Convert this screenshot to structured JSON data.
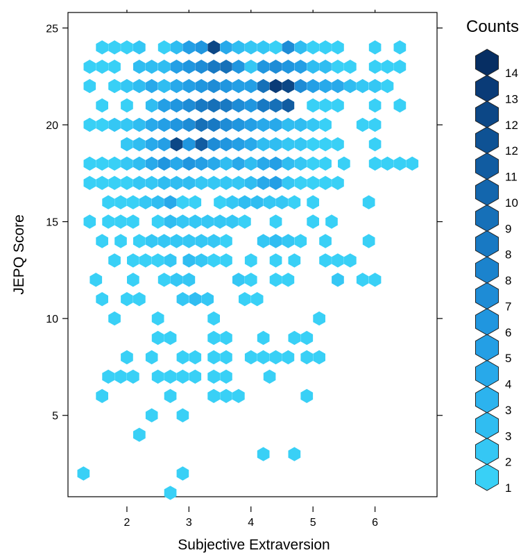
{
  "chart_data": {
    "type": "hexbin",
    "xlabel": "Subjective Extraversion",
    "ylabel": "JEPQ Score",
    "xlim": [
      1.05,
      7.0
    ],
    "ylim": [
      0.8,
      25.8
    ],
    "x_ticks": [
      2,
      3,
      4,
      5,
      6
    ],
    "y_ticks": [
      5,
      10,
      15,
      20,
      25
    ],
    "legend": {
      "title": "Counts",
      "labels": [
        "1",
        "2",
        "3",
        "3",
        "4",
        "5",
        "6",
        "7",
        "8",
        "8",
        "9",
        "10",
        "11",
        "12",
        "12",
        "13",
        "14"
      ],
      "colors": [
        "#39D0F6",
        "#35C7F4",
        "#30BDF1",
        "#2CB3EE",
        "#28A9EA",
        "#249FE5",
        "#2096DF",
        "#1E8CD6",
        "#1B83CD",
        "#1879C3",
        "#1670B8",
        "#1366AD",
        "#115CA1",
        "#0E5294",
        "#0C4786",
        "#0A3B77",
        "#062E63"
      ]
    },
    "rows": [
      {
        "y": 24,
        "cells": [
          [
            1.6,
            1
          ],
          [
            1.8,
            1
          ],
          [
            2.0,
            1
          ],
          [
            2.2,
            2
          ],
          [
            2.6,
            1
          ],
          [
            2.8,
            3
          ],
          [
            3.0,
            5
          ],
          [
            3.2,
            6
          ],
          [
            3.4,
            12
          ],
          [
            3.6,
            4
          ],
          [
            3.8,
            3
          ],
          [
            4.0,
            2
          ],
          [
            4.2,
            2
          ],
          [
            4.4,
            1
          ],
          [
            4.6,
            7
          ],
          [
            4.8,
            3
          ],
          [
            5.0,
            1
          ],
          [
            5.2,
            1
          ],
          [
            5.4,
            1
          ],
          [
            6.0,
            1
          ],
          [
            6.4,
            1
          ]
        ]
      },
      {
        "y": 23,
        "cells": [
          [
            1.4,
            1
          ],
          [
            1.6,
            1
          ],
          [
            1.8,
            1
          ],
          [
            2.2,
            3
          ],
          [
            2.4,
            3
          ],
          [
            2.6,
            3
          ],
          [
            2.8,
            5
          ],
          [
            3.0,
            6
          ],
          [
            3.2,
            7
          ],
          [
            3.4,
            8
          ],
          [
            3.6,
            9
          ],
          [
            3.8,
            6
          ],
          [
            4.0,
            2
          ],
          [
            4.2,
            6
          ],
          [
            4.4,
            7
          ],
          [
            4.6,
            6
          ],
          [
            4.8,
            5
          ],
          [
            5.0,
            3
          ],
          [
            5.2,
            3
          ],
          [
            5.4,
            1
          ],
          [
            5.6,
            1
          ],
          [
            6.0,
            1
          ],
          [
            6.2,
            1
          ],
          [
            6.4,
            1
          ]
        ]
      },
      {
        "y": 22,
        "cells": [
          [
            1.4,
            1
          ],
          [
            1.8,
            1
          ],
          [
            2.0,
            2
          ],
          [
            2.2,
            3
          ],
          [
            2.4,
            4
          ],
          [
            2.6,
            3
          ],
          [
            2.8,
            4
          ],
          [
            3.0,
            5
          ],
          [
            3.2,
            6
          ],
          [
            3.4,
            7
          ],
          [
            3.6,
            6
          ],
          [
            3.8,
            5
          ],
          [
            4.0,
            5
          ],
          [
            4.2,
            9
          ],
          [
            4.4,
            13
          ],
          [
            4.6,
            12
          ],
          [
            4.8,
            7
          ],
          [
            5.0,
            5
          ],
          [
            5.2,
            4
          ],
          [
            5.4,
            4
          ],
          [
            5.6,
            3
          ],
          [
            5.8,
            2
          ],
          [
            6.0,
            2
          ],
          [
            6.2,
            1
          ]
        ]
      },
      {
        "y": 21,
        "cells": [
          [
            1.6,
            1
          ],
          [
            2.0,
            1
          ],
          [
            2.4,
            3
          ],
          [
            2.6,
            5
          ],
          [
            2.8,
            6
          ],
          [
            3.0,
            7
          ],
          [
            3.2,
            8
          ],
          [
            3.4,
            9
          ],
          [
            3.6,
            8
          ],
          [
            3.8,
            7
          ],
          [
            4.0,
            6
          ],
          [
            4.2,
            8
          ],
          [
            4.4,
            9
          ],
          [
            4.6,
            11
          ],
          [
            5.0,
            1
          ],
          [
            5.2,
            1
          ],
          [
            5.4,
            1
          ],
          [
            6.0,
            1
          ],
          [
            6.4,
            1
          ]
        ]
      },
      {
        "y": 20,
        "cells": [
          [
            1.4,
            1
          ],
          [
            1.6,
            1
          ],
          [
            1.8,
            2
          ],
          [
            2.0,
            2
          ],
          [
            2.2,
            3
          ],
          [
            2.4,
            4
          ],
          [
            2.6,
            5
          ],
          [
            2.8,
            6
          ],
          [
            3.0,
            7
          ],
          [
            3.2,
            9
          ],
          [
            3.4,
            8
          ],
          [
            3.6,
            7
          ],
          [
            3.8,
            6
          ],
          [
            4.0,
            5
          ],
          [
            4.2,
            4
          ],
          [
            4.4,
            4
          ],
          [
            4.6,
            3
          ],
          [
            4.8,
            3
          ],
          [
            5.0,
            2
          ],
          [
            5.2,
            1
          ],
          [
            5.8,
            1
          ],
          [
            6.0,
            1
          ]
        ]
      },
      {
        "y": 19,
        "cells": [
          [
            2.0,
            2
          ],
          [
            2.2,
            3
          ],
          [
            2.4,
            4
          ],
          [
            2.6,
            5
          ],
          [
            2.8,
            12
          ],
          [
            3.0,
            6
          ],
          [
            3.2,
            11
          ],
          [
            3.4,
            7
          ],
          [
            3.6,
            6
          ],
          [
            3.8,
            5
          ],
          [
            4.0,
            4
          ],
          [
            4.2,
            3
          ],
          [
            4.4,
            3
          ],
          [
            4.6,
            2
          ],
          [
            4.8,
            2
          ],
          [
            5.0,
            1
          ],
          [
            5.2,
            1
          ],
          [
            5.4,
            1
          ],
          [
            6.0,
            1
          ]
        ]
      },
      {
        "y": 18,
        "cells": [
          [
            1.4,
            1
          ],
          [
            1.6,
            1
          ],
          [
            1.8,
            1
          ],
          [
            2.0,
            2
          ],
          [
            2.2,
            3
          ],
          [
            2.4,
            4
          ],
          [
            2.6,
            6
          ],
          [
            2.8,
            4
          ],
          [
            3.0,
            6
          ],
          [
            3.2,
            5
          ],
          [
            3.4,
            4
          ],
          [
            3.6,
            3
          ],
          [
            3.8,
            4
          ],
          [
            4.0,
            3
          ],
          [
            4.2,
            4
          ],
          [
            4.4,
            5
          ],
          [
            4.6,
            3
          ],
          [
            4.8,
            2
          ],
          [
            5.0,
            1
          ],
          [
            5.2,
            1
          ],
          [
            5.5,
            1
          ],
          [
            6.0,
            1
          ],
          [
            6.2,
            1
          ],
          [
            6.4,
            1
          ],
          [
            6.6,
            1
          ]
        ]
      },
      {
        "y": 17,
        "cells": [
          [
            1.4,
            1
          ],
          [
            1.6,
            1
          ],
          [
            1.8,
            1
          ],
          [
            2.0,
            1
          ],
          [
            2.2,
            2
          ],
          [
            2.4,
            2
          ],
          [
            2.6,
            3
          ],
          [
            2.8,
            3
          ],
          [
            3.0,
            3
          ],
          [
            3.2,
            2
          ],
          [
            3.4,
            2
          ],
          [
            3.6,
            2
          ],
          [
            3.8,
            2
          ],
          [
            4.0,
            3
          ],
          [
            4.2,
            4
          ],
          [
            4.4,
            5
          ],
          [
            4.6,
            2
          ],
          [
            4.8,
            1
          ],
          [
            5.0,
            1
          ],
          [
            5.2,
            1
          ],
          [
            5.4,
            1
          ]
        ]
      },
      {
        "y": 16,
        "cells": [
          [
            1.7,
            1
          ],
          [
            1.9,
            1
          ],
          [
            2.1,
            1
          ],
          [
            2.3,
            2
          ],
          [
            2.5,
            3
          ],
          [
            2.7,
            4
          ],
          [
            2.9,
            1
          ],
          [
            3.1,
            1
          ],
          [
            3.5,
            1
          ],
          [
            3.7,
            2
          ],
          [
            3.9,
            3
          ],
          [
            4.1,
            3
          ],
          [
            4.3,
            2
          ],
          [
            4.5,
            2
          ],
          [
            4.7,
            1
          ],
          [
            5.0,
            1
          ],
          [
            5.9,
            1
          ]
        ]
      },
      {
        "y": 15,
        "cells": [
          [
            1.4,
            1
          ],
          [
            1.7,
            1
          ],
          [
            1.9,
            1
          ],
          [
            2.1,
            1
          ],
          [
            2.5,
            1
          ],
          [
            2.7,
            3
          ],
          [
            2.9,
            2
          ],
          [
            3.1,
            2
          ],
          [
            3.3,
            2
          ],
          [
            3.5,
            2
          ],
          [
            3.7,
            2
          ],
          [
            3.9,
            1
          ],
          [
            4.4,
            1
          ],
          [
            5.0,
            1
          ],
          [
            5.3,
            1
          ]
        ]
      },
      {
        "y": 14,
        "cells": [
          [
            1.6,
            1
          ],
          [
            1.9,
            1
          ],
          [
            2.2,
            1
          ],
          [
            2.4,
            2
          ],
          [
            2.6,
            2
          ],
          [
            2.8,
            2
          ],
          [
            3.0,
            2
          ],
          [
            3.2,
            2
          ],
          [
            3.4,
            2
          ],
          [
            3.6,
            1
          ],
          [
            4.2,
            2
          ],
          [
            4.4,
            3
          ],
          [
            4.6,
            2
          ],
          [
            4.8,
            1
          ],
          [
            5.2,
            1
          ],
          [
            5.9,
            1
          ]
        ]
      },
      {
        "y": 13,
        "cells": [
          [
            1.8,
            1
          ],
          [
            2.1,
            1
          ],
          [
            2.3,
            1
          ],
          [
            2.5,
            1
          ],
          [
            2.7,
            2
          ],
          [
            3.0,
            3
          ],
          [
            3.2,
            2
          ],
          [
            3.4,
            1
          ],
          [
            3.6,
            1
          ],
          [
            4.0,
            1
          ],
          [
            4.4,
            1
          ],
          [
            4.7,
            1
          ],
          [
            5.2,
            1
          ],
          [
            5.4,
            1
          ],
          [
            5.6,
            1
          ]
        ]
      },
      {
        "y": 12,
        "cells": [
          [
            1.5,
            1
          ],
          [
            2.1,
            1
          ],
          [
            2.6,
            1
          ],
          [
            2.8,
            2
          ],
          [
            3.0,
            2
          ],
          [
            3.8,
            2
          ],
          [
            4.0,
            1
          ],
          [
            4.4,
            1
          ],
          [
            4.6,
            1
          ],
          [
            5.4,
            2
          ],
          [
            5.8,
            1
          ],
          [
            6.0,
            1
          ]
        ]
      },
      {
        "y": 11,
        "cells": [
          [
            1.6,
            1
          ],
          [
            2.0,
            1
          ],
          [
            2.2,
            1
          ],
          [
            2.9,
            2
          ],
          [
            3.1,
            3
          ],
          [
            3.3,
            2
          ],
          [
            3.9,
            1
          ],
          [
            4.1,
            1
          ]
        ]
      },
      {
        "y": 10,
        "cells": [
          [
            1.8,
            1
          ],
          [
            2.5,
            1
          ],
          [
            3.4,
            1
          ],
          [
            5.1,
            1
          ]
        ]
      },
      {
        "y": 9,
        "cells": [
          [
            2.5,
            1
          ],
          [
            2.7,
            1
          ],
          [
            3.4,
            1
          ],
          [
            3.6,
            1
          ],
          [
            4.2,
            1
          ],
          [
            4.7,
            1
          ],
          [
            4.9,
            1
          ]
        ]
      },
      {
        "y": 8,
        "cells": [
          [
            2.0,
            1
          ],
          [
            2.4,
            1
          ],
          [
            2.9,
            1
          ],
          [
            3.1,
            1
          ],
          [
            3.4,
            1
          ],
          [
            3.6,
            1
          ],
          [
            4.0,
            1
          ],
          [
            4.2,
            1
          ],
          [
            4.4,
            1
          ],
          [
            4.6,
            1
          ],
          [
            4.9,
            1
          ],
          [
            5.1,
            1
          ]
        ]
      },
      {
        "y": 7,
        "cells": [
          [
            1.7,
            1
          ],
          [
            1.9,
            1
          ],
          [
            2.1,
            1
          ],
          [
            2.5,
            1
          ],
          [
            2.7,
            1
          ],
          [
            2.9,
            1
          ],
          [
            3.1,
            1
          ],
          [
            3.4,
            1
          ],
          [
            3.6,
            1
          ],
          [
            4.3,
            1
          ]
        ]
      },
      {
        "y": 6,
        "cells": [
          [
            1.6,
            1
          ],
          [
            2.7,
            1
          ],
          [
            3.4,
            1
          ],
          [
            3.6,
            1
          ],
          [
            3.8,
            1
          ],
          [
            4.9,
            1
          ]
        ]
      },
      {
        "y": 5,
        "cells": [
          [
            2.4,
            1
          ],
          [
            2.9,
            1
          ]
        ]
      },
      {
        "y": 4,
        "cells": [
          [
            2.2,
            1
          ]
        ]
      },
      {
        "y": 3,
        "cells": [
          [
            4.2,
            1
          ],
          [
            4.7,
            1
          ]
        ]
      },
      {
        "y": 2,
        "cells": [
          [
            1.3,
            1
          ],
          [
            2.9,
            1
          ]
        ]
      },
      {
        "y": 1,
        "cells": [
          [
            2.7,
            1
          ]
        ]
      }
    ]
  }
}
